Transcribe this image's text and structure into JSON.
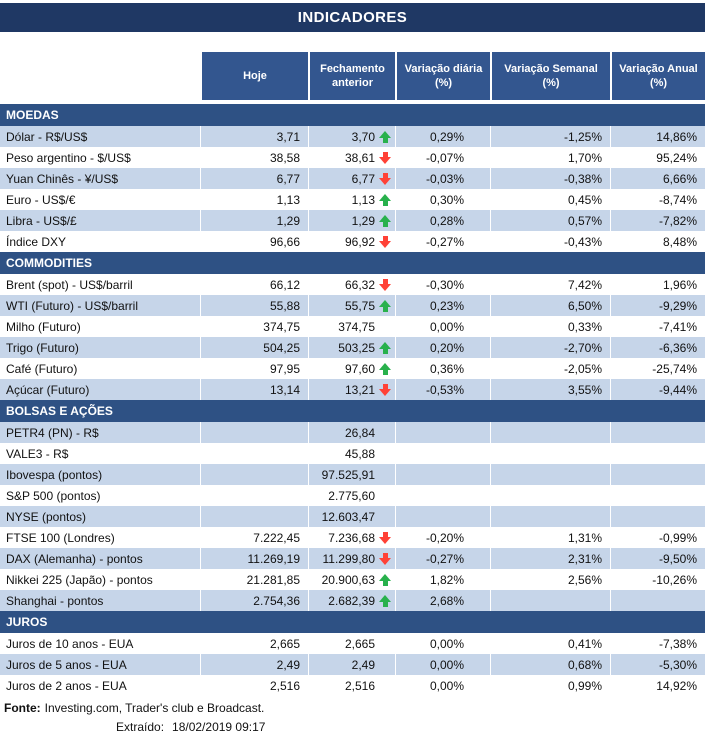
{
  "title": "INDICADORES",
  "chart_data": {
    "type": "table",
    "title": "INDICADORES",
    "columns": [
      "Hoje",
      "Fechamento anterior",
      "Variação diária (%)",
      "Variação Semanal (%)",
      "Variação Anual (%)"
    ],
    "sections": [
      {
        "name": "MOEDAS",
        "first_row_shaded": true,
        "rows": [
          {
            "label": "Dólar - R$/US$",
            "hoje": "3,71",
            "fechamento": "3,70",
            "arrow": "up",
            "diaria": "0,29%",
            "semanal": "-1,25%",
            "anual": "14,86%"
          },
          {
            "label": "Peso argentino - $/US$",
            "hoje": "38,58",
            "fechamento": "38,61",
            "arrow": "down",
            "diaria": "-0,07%",
            "semanal": "1,70%",
            "anual": "95,24%"
          },
          {
            "label": "Yuan Chinês - ¥/US$",
            "hoje": "6,77",
            "fechamento": "6,77",
            "arrow": "down",
            "diaria": "-0,03%",
            "semanal": "-0,38%",
            "anual": "6,66%"
          },
          {
            "label": "Euro - US$/€",
            "hoje": "1,13",
            "fechamento": "1,13",
            "arrow": "up",
            "diaria": "0,30%",
            "semanal": "0,45%",
            "anual": "-8,74%"
          },
          {
            "label": "Libra - US$/£",
            "hoje": "1,29",
            "fechamento": "1,29",
            "arrow": "up",
            "diaria": "0,28%",
            "semanal": "0,57%",
            "anual": "-7,82%"
          },
          {
            "label": "Índice DXY",
            "hoje": "96,66",
            "fechamento": "96,92",
            "arrow": "down",
            "diaria": "-0,27%",
            "semanal": "-0,43%",
            "anual": "8,48%"
          }
        ]
      },
      {
        "name": "COMMODITIES",
        "first_row_shaded": false,
        "rows": [
          {
            "label": "Brent (spot) - US$/barril",
            "hoje": "66,12",
            "fechamento": "66,32",
            "arrow": "down",
            "diaria": "-0,30%",
            "semanal": "7,42%",
            "anual": "1,96%"
          },
          {
            "label": "WTI (Futuro) - US$/barril",
            "hoje": "55,88",
            "fechamento": "55,75",
            "arrow": "up",
            "diaria": "0,23%",
            "semanal": "6,50%",
            "anual": "-9,29%"
          },
          {
            "label": "Milho (Futuro)",
            "hoje": "374,75",
            "fechamento": "374,75",
            "arrow": "",
            "diaria": "0,00%",
            "semanal": "0,33%",
            "anual": "-7,41%"
          },
          {
            "label": "Trigo (Futuro)",
            "hoje": "504,25",
            "fechamento": "503,25",
            "arrow": "up",
            "diaria": "0,20%",
            "semanal": "-2,70%",
            "anual": "-6,36%"
          },
          {
            "label": "Café (Futuro)",
            "hoje": "97,95",
            "fechamento": "97,60",
            "arrow": "up",
            "diaria": "0,36%",
            "semanal": "-2,05%",
            "anual": "-25,74%"
          },
          {
            "label": "Açúcar (Futuro)",
            "hoje": "13,14",
            "fechamento": "13,21",
            "arrow": "down",
            "diaria": "-0,53%",
            "semanal": "3,55%",
            "anual": "-9,44%"
          }
        ]
      },
      {
        "name": "BOLSAS E AÇÕES",
        "first_row_shaded": true,
        "rows": [
          {
            "label": "PETR4 (PN) - R$",
            "hoje": "",
            "fechamento": "26,84",
            "arrow": "",
            "diaria": "",
            "semanal": "",
            "anual": ""
          },
          {
            "label": "VALE3 - R$",
            "hoje": "",
            "fechamento": "45,88",
            "arrow": "",
            "diaria": "",
            "semanal": "",
            "anual": ""
          },
          {
            "label": "Ibovespa (pontos)",
            "hoje": "",
            "fechamento": "97.525,91",
            "arrow": "",
            "diaria": "",
            "semanal": "",
            "anual": ""
          },
          {
            "label": "S&P 500 (pontos)",
            "hoje": "",
            "fechamento": "2.775,60",
            "arrow": "",
            "diaria": "",
            "semanal": "",
            "anual": ""
          },
          {
            "label": "NYSE (pontos)",
            "hoje": "",
            "fechamento": "12.603,47",
            "arrow": "",
            "diaria": "",
            "semanal": "",
            "anual": ""
          },
          {
            "label": "FTSE 100 (Londres)",
            "hoje": "7.222,45",
            "fechamento": "7.236,68",
            "arrow": "down",
            "diaria": "-0,20%",
            "semanal": "1,31%",
            "anual": "-0,99%"
          },
          {
            "label": "DAX (Alemanha) - pontos",
            "hoje": "11.269,19",
            "fechamento": "11.299,80",
            "arrow": "down",
            "diaria": "-0,27%",
            "semanal": "2,31%",
            "anual": "-9,50%"
          },
          {
            "label": "Nikkei 225 (Japão) - pontos",
            "hoje": "21.281,85",
            "fechamento": "20.900,63",
            "arrow": "up",
            "diaria": "1,82%",
            "semanal": "2,56%",
            "anual": "-10,26%"
          },
          {
            "label": "Shanghai - pontos",
            "hoje": "2.754,36",
            "fechamento": "2.682,39",
            "arrow": "up",
            "diaria": "2,68%",
            "semanal": "",
            "anual": ""
          }
        ]
      },
      {
        "name": "JUROS",
        "first_row_shaded": false,
        "rows": [
          {
            "label": "Juros de 10 anos - EUA",
            "hoje": "2,665",
            "fechamento": "2,665",
            "arrow": "",
            "diaria": "0,00%",
            "semanal": "0,41%",
            "anual": "-7,38%"
          },
          {
            "label": "Juros de 5 anos - EUA",
            "hoje": "2,49",
            "fechamento": "2,49",
            "arrow": "",
            "diaria": "0,00%",
            "semanal": "0,68%",
            "anual": "-5,30%"
          },
          {
            "label": "Juros de 2 anos - EUA",
            "hoje": "2,516",
            "fechamento": "2,516",
            "arrow": "",
            "diaria": "0,00%",
            "semanal": "0,99%",
            "anual": "14,92%"
          }
        ]
      }
    ]
  },
  "footer": {
    "fonte_label": "Fonte:",
    "fonte_text": "Investing.com, Trader's club e Broadcast.",
    "extraido_label": "Extraído:",
    "extraido_value": "18/02/2019 09:17"
  },
  "colors": {
    "title_bg": "#1F3864",
    "header_bg": "#33568F",
    "section_bg": "#2E5184",
    "row_alt_bg": "#C6D5E9",
    "arrow_up": "#28B14C",
    "arrow_down": "#FF4136",
    "text": "#111111"
  }
}
